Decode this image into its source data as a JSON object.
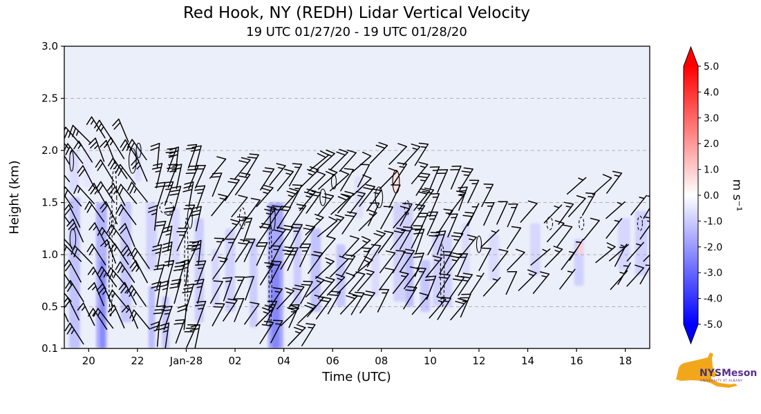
{
  "chart_data": {
    "type": "heatmap+barbs",
    "title": "Red Hook, NY (REDH) Lidar Vertical Velocity",
    "subtitle": "19 UTC 01/27/20 - 19 UTC 01/28/20",
    "x_axis": {
      "label": "Time (UTC)",
      "domain_hours": [
        19,
        43
      ],
      "ticks": [
        {
          "hour": 20,
          "label": "20"
        },
        {
          "hour": 22,
          "label": "22"
        },
        {
          "hour": 24,
          "label": "Jan-28"
        },
        {
          "hour": 26,
          "label": "02"
        },
        {
          "hour": 28,
          "label": "04"
        },
        {
          "hour": 30,
          "label": "06"
        },
        {
          "hour": 32,
          "label": "08"
        },
        {
          "hour": 34,
          "label": "10"
        },
        {
          "hour": 36,
          "label": "12"
        },
        {
          "hour": 38,
          "label": "14"
        },
        {
          "hour": 40,
          "label": "16"
        },
        {
          "hour": 42,
          "label": "18"
        }
      ]
    },
    "y_axis": {
      "label": "Height (km)",
      "range": [
        0.1,
        3.0
      ],
      "ticks": [
        {
          "km": 3.0,
          "label": "3.0"
        },
        {
          "km": 2.5,
          "label": "2.5"
        },
        {
          "km": 2.0,
          "label": "2.0"
        },
        {
          "km": 1.5,
          "label": "1.5"
        },
        {
          "km": 1.0,
          "label": "1.0"
        },
        {
          "km": 0.5,
          "label": "0.5"
        },
        {
          "km": 0.1,
          "label": "0.1"
        }
      ],
      "gridlines": [
        2.5,
        2.0,
        1.5,
        1.0,
        0.5
      ]
    },
    "colorbar": {
      "label": "m s⁻¹",
      "vmin": -5.0,
      "vmax": 5.0,
      "ticks": [
        "5.0",
        "4.0",
        "3.0",
        "2.0",
        "1.0",
        "0.0",
        "-1.0",
        "-2.0",
        "-3.0",
        "-4.0",
        "-5.0"
      ],
      "cmap": "blue-white-red",
      "extend": "both"
    },
    "style": {
      "plot_bg": "#ebeffa",
      "grid_color": "#a8a8a8",
      "barb_color": "#000000",
      "cbar_top": "#ff0000",
      "cbar_mid": "#ffffff",
      "cbar_bottom": "#0000ff"
    },
    "note": "Shading = vertical velocity (m/s, estimated from colorbar); patches as [t0_hr,t1_hr,h0_km,h1_km,w_ms]. Contours as [t_hr,h_km,rt_hr,rh_km,dashed]. Barb clusters are estimated extent/direction/speed of the plotted wind barbs.",
    "shade_patches": [
      [
        19.2,
        19.65,
        0.1,
        1.55,
        -1.2
      ],
      [
        19.2,
        19.6,
        1.6,
        2.0,
        -0.7
      ],
      [
        19.8,
        20.1,
        1.65,
        2.0,
        -0.5
      ],
      [
        20.3,
        20.75,
        0.1,
        1.5,
        -1.5
      ],
      [
        20.45,
        20.68,
        0.1,
        0.95,
        -2.3
      ],
      [
        21.3,
        21.75,
        0.35,
        1.5,
        -1.1
      ],
      [
        21.9,
        22.15,
        1.7,
        2.05,
        -0.7
      ],
      [
        22.35,
        22.8,
        0.85,
        1.5,
        -0.9
      ],
      [
        22.45,
        22.72,
        0.1,
        0.7,
        -1.3
      ],
      [
        23.0,
        23.3,
        0.1,
        0.6,
        -1.1
      ],
      [
        23.4,
        23.72,
        0.9,
        1.45,
        -0.8
      ],
      [
        24.35,
        24.72,
        0.35,
        1.35,
        -1.0
      ],
      [
        25.05,
        25.35,
        0.5,
        1.05,
        -0.8
      ],
      [
        25.6,
        26.0,
        0.45,
        1.25,
        -0.9
      ],
      [
        26.6,
        26.92,
        0.3,
        1.15,
        -1.0
      ],
      [
        27.35,
        27.98,
        0.1,
        1.5,
        -1.7
      ],
      [
        27.5,
        27.82,
        0.1,
        0.95,
        -2.4
      ],
      [
        28.4,
        28.72,
        0.5,
        1.3,
        -1.0
      ],
      [
        29.1,
        29.52,
        0.45,
        1.25,
        -1.2
      ],
      [
        30.15,
        30.52,
        0.5,
        1.1,
        -1.1
      ],
      [
        30.9,
        31.25,
        1.35,
        1.75,
        -0.6
      ],
      [
        31.6,
        31.92,
        0.6,
        1.05,
        -0.7
      ],
      [
        32.45,
        32.75,
        1.6,
        1.82,
        0.6
      ],
      [
        32.5,
        33.3,
        0.55,
        1.5,
        -0.9
      ],
      [
        33.0,
        33.32,
        0.5,
        1.0,
        -1.3
      ],
      [
        33.6,
        34.0,
        0.45,
        0.95,
        -1.1
      ],
      [
        34.1,
        34.9,
        0.5,
        1.2,
        -0.9
      ],
      [
        35.3,
        35.62,
        0.8,
        1.3,
        -0.7
      ],
      [
        36.4,
        36.82,
        0.75,
        1.2,
        -0.7
      ],
      [
        38.1,
        38.52,
        0.8,
        1.3,
        -0.8
      ],
      [
        39.9,
        40.3,
        0.7,
        1.15,
        -0.9
      ],
      [
        40.05,
        40.25,
        1.0,
        1.12,
        0.9
      ],
      [
        41.7,
        42.2,
        0.85,
        1.35,
        -0.8
      ],
      [
        42.4,
        42.92,
        0.8,
        1.42,
        -0.9
      ]
    ],
    "contours": [
      [
        19.35,
        1.15,
        0.12,
        0.1,
        0
      ],
      [
        19.3,
        1.9,
        0.08,
        0.1,
        0
      ],
      [
        20.9,
        0.9,
        0.07,
        0.5,
        1
      ],
      [
        21.05,
        1.55,
        0.1,
        0.28,
        1
      ],
      [
        21.8,
        1.9,
        0.15,
        0.12,
        0
      ],
      [
        22.05,
        2.0,
        0.1,
        0.07,
        0
      ],
      [
        23.2,
        1.45,
        0.28,
        0.06,
        1
      ],
      [
        24.0,
        0.9,
        0.07,
        0.45,
        1
      ],
      [
        24.15,
        1.35,
        0.1,
        0.1,
        0
      ],
      [
        26.3,
        1.35,
        0.12,
        0.1,
        1
      ],
      [
        27.45,
        0.8,
        0.06,
        0.5,
        1
      ],
      [
        27.55,
        1.35,
        0.1,
        0.12,
        0
      ],
      [
        29.6,
        1.55,
        0.12,
        0.08,
        0
      ],
      [
        30.05,
        1.7,
        0.1,
        0.07,
        0
      ],
      [
        31.9,
        1.55,
        0.15,
        0.1,
        0
      ],
      [
        32.6,
        1.7,
        0.14,
        0.11,
        0
      ],
      [
        33.05,
        1.45,
        0.1,
        0.07,
        1
      ],
      [
        34.5,
        0.8,
        0.08,
        0.3,
        1
      ],
      [
        36.0,
        1.1,
        0.1,
        0.08,
        0
      ],
      [
        38.9,
        1.3,
        0.12,
        0.06,
        1
      ],
      [
        40.2,
        1.3,
        0.1,
        0.06,
        1
      ],
      [
        42.6,
        1.3,
        0.1,
        0.07,
        1
      ]
    ],
    "barb_clusters": [
      {
        "t0": 19.25,
        "t1": 20.15,
        "dt": 0.45,
        "h0": 0.15,
        "h1": 2.0,
        "dh": 0.19,
        "dir": 325,
        "spd": 20,
        "gap": 0.12
      },
      {
        "t0": 20.65,
        "t1": 22.4,
        "dt": 0.44,
        "h0": 0.3,
        "h1": 2.05,
        "dh": 0.2,
        "dir": 330,
        "spd": 20,
        "gap": 0.15
      },
      {
        "t0": 22.75,
        "t1": 24.6,
        "dt": 0.42,
        "h0": 0.12,
        "h1": 1.9,
        "dh": 0.19,
        "dir": 15,
        "spd": 25,
        "gap": 0.12
      },
      {
        "t0": 25.05,
        "t1": 26.6,
        "dt": 0.45,
        "h0": 0.35,
        "h1": 1.8,
        "dh": 0.2,
        "dir": 30,
        "spd": 18,
        "gap": 0.18
      },
      {
        "t0": 26.95,
        "t1": 28.65,
        "dt": 0.43,
        "h0": 0.12,
        "h1": 1.6,
        "dh": 0.19,
        "dir": 35,
        "spd": 20,
        "gap": 0.15
      },
      {
        "t0": 28.95,
        "t1": 30.7,
        "dt": 0.45,
        "h0": 0.4,
        "h1": 1.8,
        "dh": 0.2,
        "dir": 40,
        "spd": 15,
        "gap": 0.18
      },
      {
        "t0": 31.05,
        "t1": 33.25,
        "dt": 0.45,
        "h0": 0.45,
        "h1": 1.85,
        "dh": 0.2,
        "dir": 35,
        "spd": 15,
        "gap": 0.2
      },
      {
        "t0": 33.45,
        "t1": 35.2,
        "dt": 0.44,
        "h0": 0.4,
        "h1": 1.6,
        "dh": 0.2,
        "dir": 30,
        "spd": 20,
        "gap": 0.18
      },
      {
        "t0": 35.55,
        "t1": 37.3,
        "dt": 0.55,
        "h0": 0.6,
        "h1": 1.45,
        "dh": 0.22,
        "dir": 35,
        "spd": 12,
        "gap": 0.25
      },
      {
        "t0": 37.65,
        "t1": 39.4,
        "dt": 0.55,
        "h0": 0.65,
        "h1": 1.4,
        "dh": 0.22,
        "dir": 40,
        "spd": 12,
        "gap": 0.25
      },
      {
        "t0": 39.65,
        "t1": 41.4,
        "dt": 0.55,
        "h0": 0.7,
        "h1": 1.5,
        "dh": 0.22,
        "dir": 40,
        "spd": 12,
        "gap": 0.25
      },
      {
        "t0": 41.6,
        "t1": 43.0,
        "dt": 0.55,
        "h0": 0.7,
        "h1": 1.45,
        "dh": 0.22,
        "dir": 35,
        "spd": 12,
        "gap": 0.25
      }
    ]
  },
  "logo": {
    "nys": "NYS",
    "mesonet": "Mesonet",
    "subtitle": "UNIVERSITY AT ALBANY",
    "state_color": "#F2A71B"
  }
}
